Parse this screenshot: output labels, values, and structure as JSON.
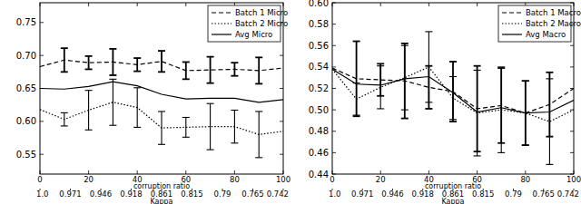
{
  "chart_data": [
    {
      "type": "line",
      "x_label": "corruption ratio",
      "x2_label": "Kappa",
      "x": [
        0,
        10,
        20,
        30,
        40,
        50,
        60,
        70,
        80,
        90,
        100
      ],
      "xlim": [
        0,
        100
      ],
      "xticks": [
        0,
        20,
        40,
        60,
        80,
        100
      ],
      "x2ticks": [
        {
          "value": 0,
          "label": "1.0"
        },
        {
          "value": 12.5,
          "label": "0.971"
        },
        {
          "value": 25,
          "label": "0.946"
        },
        {
          "value": 37.5,
          "label": "0.918"
        },
        {
          "value": 50,
          "label": "0.861"
        },
        {
          "value": 62.5,
          "label": "0.815"
        },
        {
          "value": 75,
          "label": "0.79"
        },
        {
          "value": 87.5,
          "label": "0.765"
        },
        {
          "value": 100,
          "label": "0.742"
        }
      ],
      "ylim": [
        0.52,
        0.78
      ],
      "yticks": [
        0.55,
        {
          "value": 0.6,
          "label": "0.60"
        },
        0.65,
        {
          "value": 0.7,
          "label": "0.70"
        },
        0.75
      ],
      "legend": "upper right",
      "series": [
        {
          "name": "Batch 1 Micro",
          "color": "#000000",
          "line_style": "dashed",
          "values": [
            0.683,
            0.693,
            0.689,
            0.69,
            0.686,
            0.691,
            0.677,
            0.678,
            0.679,
            0.677,
            0.681
          ],
          "errors": [
            null,
            0.018,
            0.01,
            0.02,
            0.01,
            0.016,
            0.013,
            0.02,
            0.01,
            0.02,
            null
          ]
        },
        {
          "name": "Batch 2 Micro",
          "color": "#000000",
          "line_style": "dotted",
          "values": [
            0.618,
            0.603,
            0.617,
            0.629,
            0.621,
            0.59,
            0.591,
            0.592,
            0.592,
            0.58,
            0.585
          ],
          "errors": [
            null,
            0.01,
            0.03,
            0.035,
            0.03,
            0.025,
            0.015,
            0.035,
            0.025,
            0.035,
            null
          ]
        },
        {
          "name": "Avg Micro",
          "color": "#000000",
          "line_style": "solid",
          "values": [
            0.65,
            0.649,
            0.653,
            0.66,
            0.654,
            0.641,
            0.634,
            0.635,
            0.635,
            0.629,
            0.633
          ]
        }
      ]
    },
    {
      "type": "line",
      "x_label": "corruption ratio",
      "x2_label": "Kappa",
      "x": [
        0,
        10,
        20,
        30,
        40,
        50,
        60,
        70,
        80,
        90,
        100
      ],
      "xlim": [
        0,
        100
      ],
      "xticks": [
        0,
        20,
        40,
        60,
        80,
        100
      ],
      "x2ticks": [
        {
          "value": 0,
          "label": "1.0"
        },
        {
          "value": 12.5,
          "label": "0.971"
        },
        {
          "value": 25,
          "label": "0.946"
        },
        {
          "value": 37.5,
          "label": "0.918"
        },
        {
          "value": 50,
          "label": "0.861"
        },
        {
          "value": 62.5,
          "label": "0.815"
        },
        {
          "value": 75,
          "label": "0.79"
        },
        {
          "value": 87.5,
          "label": "0.765"
        },
        {
          "value": 100,
          "label": "0.742"
        }
      ],
      "ylim": [
        0.44,
        0.6
      ],
      "yticks": [
        0.44,
        0.46,
        0.48,
        {
          "value": 0.5,
          "label": "0.50"
        },
        0.52,
        0.54,
        0.56,
        0.58,
        {
          "value": 0.6,
          "label": "0.60"
        }
      ],
      "legend": "upper right",
      "series": [
        {
          "name": "Batch 1 Macro",
          "color": "#000000",
          "line_style": "dashed",
          "values": [
            0.539,
            0.529,
            0.528,
            0.527,
            0.521,
            0.517,
            0.501,
            0.504,
            0.497,
            0.505,
            0.52
          ],
          "errors": [
            null,
            0.035,
            0.015,
            0.035,
            0.02,
            0.028,
            0.04,
            0.035,
            0.03,
            0.03,
            null
          ]
        },
        {
          "name": "Batch 2 Macro",
          "color": "#000000",
          "line_style": "dotted",
          "values": [
            0.538,
            0.51,
            0.521,
            0.53,
            0.54,
            0.511,
            0.497,
            0.5,
            0.497,
            0.489,
            0.5
          ],
          "errors": [
            null,
            0.015,
            0.02,
            0.03,
            0.033,
            0.02,
            0.04,
            0.04,
            0.03,
            0.04,
            null
          ]
        },
        {
          "name": "Avg Macro",
          "color": "#000000",
          "line_style": "solid",
          "values": [
            0.538,
            0.524,
            0.523,
            0.529,
            0.531,
            0.516,
            0.498,
            0.502,
            0.497,
            0.498,
            0.509
          ]
        }
      ]
    }
  ]
}
